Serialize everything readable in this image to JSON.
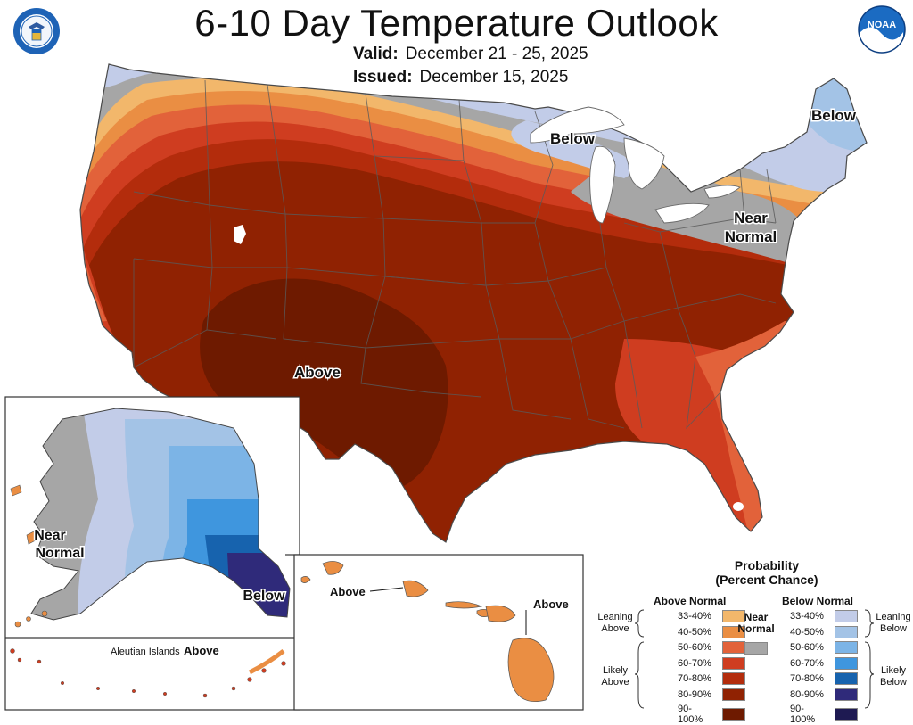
{
  "header": {
    "title": "6-10 Day Temperature Outlook",
    "valid_label": "Valid:",
    "valid_value": "December 21 - 25, 2025",
    "issued_label": "Issued:",
    "issued_value": "December 15, 2025",
    "left_logo": "US Department of Commerce seal",
    "right_logo": "NOAA"
  },
  "map_labels": {
    "conus_above": "Above",
    "great_lakes_below": "Below",
    "northeast_below": "Below",
    "mid_atlantic_near": "Near",
    "mid_atlantic_normal": "Normal",
    "alaska_near": "Near",
    "alaska_normal": "Normal",
    "alaska_below": "Below",
    "hawaii_above_left": "Above",
    "hawaii_above_right": "Above",
    "aleutian_label": "Aleutian Islands",
    "aleutian_above": "Above"
  },
  "legend": {
    "title_line1": "Probability",
    "title_line2": "(Percent Chance)",
    "above_head": "Above Normal",
    "below_head": "Below Normal",
    "near_line1": "Near",
    "near_line2": "Normal",
    "leaning_above_1": "Leaning",
    "leaning_above_2": "Above",
    "likely_above_1": "Likely",
    "likely_above_2": "Above",
    "leaning_below_1": "Leaning",
    "leaning_below_2": "Below",
    "likely_below_1": "Likely",
    "likely_below_2": "Below",
    "above_rows": [
      {
        "label": "33-40%",
        "color": "#f2b76b"
      },
      {
        "label": "40-50%",
        "color": "#ea8e43"
      },
      {
        "label": "50-60%",
        "color": "#e2623a"
      },
      {
        "label": "60-70%",
        "color": "#cf3d20"
      },
      {
        "label": "70-80%",
        "color": "#b32c0c"
      },
      {
        "label": "80-90%",
        "color": "#902202"
      },
      {
        "label": "90-100%",
        "color": "#6e1a00"
      }
    ],
    "below_rows": [
      {
        "label": "33-40%",
        "color": "#c2cce8"
      },
      {
        "label": "40-50%",
        "color": "#a3c3e6"
      },
      {
        "label": "50-60%",
        "color": "#7cb4e6"
      },
      {
        "label": "60-70%",
        "color": "#3f96de"
      },
      {
        "label": "70-80%",
        "color": "#1763ae"
      },
      {
        "label": "80-90%",
        "color": "#2f2a7a"
      },
      {
        "label": "90-100%",
        "color": "#1e1a52"
      }
    ],
    "near_color": "#a6a6a6"
  }
}
